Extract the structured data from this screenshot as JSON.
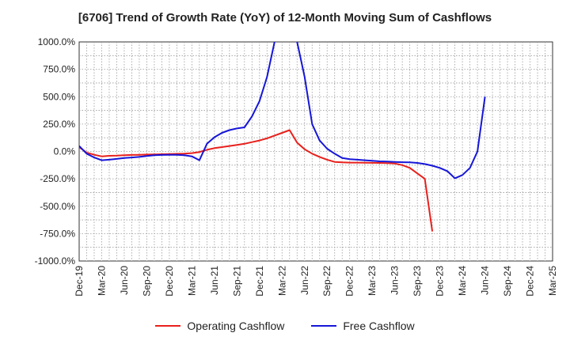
{
  "title": "[6706]  Trend of Growth Rate (YoY) of 12-Month Moving Sum of Cashflows",
  "chart_data": {
    "type": "line",
    "title": "[6706]  Trend of Growth Rate (YoY) of 12-Month Moving Sum of Cashflows",
    "xlabel": "",
    "ylabel": "",
    "ylim": [
      -1000,
      1000
    ],
    "y_ticks": [
      "1000.0%",
      "750.0%",
      "500.0%",
      "250.0%",
      "0.0%",
      "-250.0%",
      "-500.0%",
      "-750.0%",
      "-1000.0%"
    ],
    "y_tick_values": [
      1000,
      750,
      500,
      250,
      0,
      -250,
      -500,
      -750,
      -1000
    ],
    "x_tick_labels": [
      "Dec-19",
      "Mar-20",
      "Jun-20",
      "Sep-20",
      "Dec-20",
      "Mar-21",
      "Jun-21",
      "Sep-21",
      "Dec-21",
      "Mar-22",
      "Jun-22",
      "Sep-22",
      "Dec-22",
      "Mar-23",
      "Jun-23",
      "Sep-23",
      "Dec-23",
      "Mar-24",
      "Jun-24",
      "Sep-24",
      "Dec-24",
      "Mar-25"
    ],
    "months": [
      "2019-12",
      "2020-01",
      "2020-02",
      "2020-03",
      "2020-04",
      "2020-05",
      "2020-06",
      "2020-07",
      "2020-08",
      "2020-09",
      "2020-10",
      "2020-11",
      "2020-12",
      "2021-01",
      "2021-02",
      "2021-03",
      "2021-04",
      "2021-05",
      "2021-06",
      "2021-07",
      "2021-08",
      "2021-09",
      "2021-10",
      "2021-11",
      "2021-12",
      "2022-01",
      "2022-02",
      "2022-03",
      "2022-04",
      "2022-05",
      "2022-06",
      "2022-07",
      "2022-08",
      "2022-09",
      "2022-10",
      "2022-11",
      "2022-12",
      "2023-01",
      "2023-02",
      "2023-03",
      "2023-04",
      "2023-05",
      "2023-06",
      "2023-07",
      "2023-08",
      "2023-09",
      "2023-10",
      "2023-11",
      "2023-12",
      "2024-01",
      "2024-02",
      "2024-03",
      "2024-04",
      "2024-05",
      "2024-06",
      "2024-07",
      "2024-08",
      "2024-09",
      "2024-10",
      "2024-11",
      "2024-12",
      "2025-01",
      "2025-02",
      "2025-03"
    ],
    "grid": true,
    "legend_position": "bottom",
    "series": [
      {
        "name": "Operating Cashflow",
        "color": "#e8201c",
        "values": [
          40,
          -10,
          -30,
          -45,
          -40,
          -38,
          -35,
          -32,
          -30,
          -28,
          -27,
          -25,
          -24,
          -22,
          -20,
          -15,
          -5,
          15,
          30,
          40,
          50,
          60,
          70,
          85,
          100,
          120,
          145,
          170,
          195,
          80,
          20,
          -20,
          -50,
          -75,
          -95,
          -100,
          -102,
          -102,
          -103,
          -104,
          -105,
          -107,
          -110,
          -125,
          -150,
          -200,
          -250,
          -730,
          null,
          null,
          null,
          null,
          null,
          null,
          null,
          null,
          null,
          null,
          null,
          null,
          null,
          null,
          null,
          null
        ]
      },
      {
        "name": "Free Cashflow",
        "color": "#1616d8",
        "values": [
          50,
          -20,
          -55,
          -80,
          -75,
          -68,
          -60,
          -55,
          -50,
          -42,
          -35,
          -32,
          -30,
          -30,
          -35,
          -45,
          -80,
          70,
          130,
          170,
          195,
          210,
          220,
          320,
          460,
          680,
          1000,
          null,
          null,
          1000,
          680,
          250,
          100,
          25,
          -20,
          -60,
          -70,
          -75,
          -80,
          -85,
          -90,
          -92,
          -95,
          -98,
          -100,
          -105,
          -115,
          -130,
          -150,
          -180,
          -245,
          -215,
          -150,
          0,
          500,
          null,
          null,
          null,
          null,
          null,
          null,
          null,
          null,
          null
        ]
      }
    ]
  }
}
